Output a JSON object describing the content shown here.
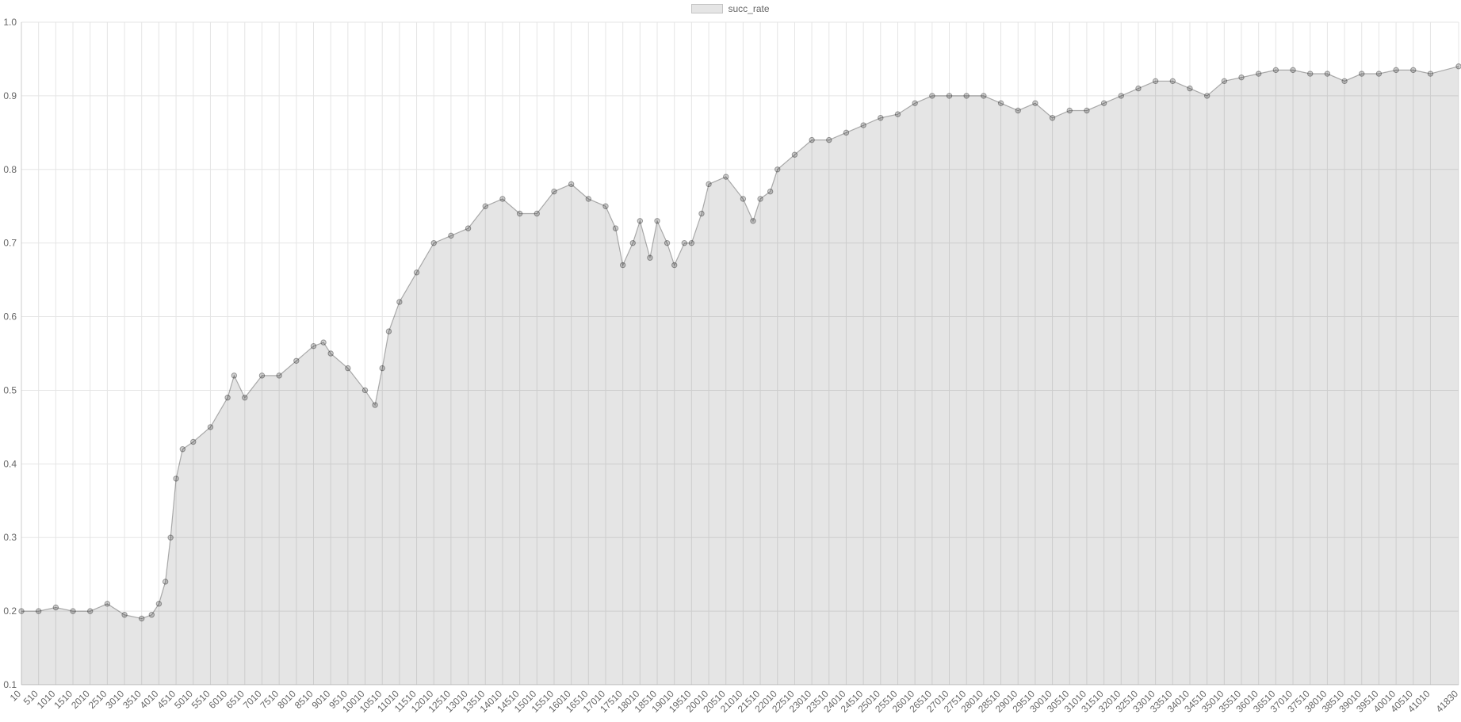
{
  "legend": {
    "label": "succ_rate"
  },
  "colors": {
    "fill": "rgba(0,0,0,0.1)",
    "line": "rgba(0,0,0,0.3)",
    "point_fill": "rgba(0,0,0,0.18)",
    "point_stroke": "rgba(0,0,0,0.35)",
    "grid": "#e5e5e5",
    "tick_text": "#666666"
  },
  "chart_data": {
    "type": "line",
    "fill": true,
    "grid": true,
    "legend_position": "top-center",
    "title": "",
    "xlabel": "",
    "ylabel": "",
    "ylim": [
      0.1,
      1.0
    ],
    "yticks": [
      0.1,
      0.2,
      0.3,
      0.4,
      0.5,
      0.6,
      0.7,
      0.8,
      0.9,
      1.0
    ],
    "xlim": [
      10,
      41830
    ],
    "xticks": [
      10,
      510,
      1010,
      1510,
      2010,
      2510,
      3010,
      3510,
      4010,
      4510,
      5010,
      5510,
      6010,
      6510,
      7010,
      7510,
      8010,
      8510,
      9010,
      9510,
      10010,
      10510,
      11010,
      11510,
      12010,
      12510,
      13010,
      13510,
      14010,
      14510,
      15010,
      15510,
      16010,
      16510,
      17010,
      17510,
      18010,
      18510,
      19010,
      19510,
      20010,
      20510,
      21010,
      21510,
      22010,
      22510,
      23010,
      23510,
      24010,
      24510,
      25010,
      25510,
      26010,
      26510,
      27010,
      27510,
      28010,
      28510,
      29010,
      29510,
      30010,
      30510,
      31010,
      31510,
      32010,
      32510,
      33010,
      33510,
      34010,
      34510,
      35010,
      35510,
      36010,
      36510,
      37010,
      37510,
      38010,
      38510,
      39010,
      39510,
      40010,
      40510,
      41010,
      41830
    ],
    "series": [
      {
        "name": "succ_rate",
        "x": [
          10,
          510,
          1010,
          1510,
          2010,
          2510,
          3010,
          3510,
          3800,
          4010,
          4200,
          4350,
          4510,
          4700,
          5010,
          5510,
          6010,
          6200,
          6510,
          7010,
          7510,
          8010,
          8510,
          8800,
          9010,
          9510,
          10010,
          10300,
          10510,
          10700,
          11010,
          11510,
          12010,
          12510,
          13010,
          13510,
          14010,
          14510,
          15010,
          15510,
          16010,
          16510,
          17010,
          17300,
          17510,
          17800,
          18010,
          18300,
          18510,
          18800,
          19010,
          19300,
          19510,
          19800,
          20010,
          20510,
          21010,
          21300,
          21510,
          21800,
          22010,
          22510,
          23010,
          23510,
          24010,
          24510,
          25010,
          25510,
          26010,
          26510,
          27010,
          27510,
          28010,
          28510,
          29010,
          29510,
          30010,
          30510,
          31010,
          31510,
          32010,
          32510,
          33010,
          33510,
          34010,
          34510,
          35010,
          35510,
          36010,
          36510,
          37010,
          37510,
          38010,
          38510,
          39010,
          39510,
          40010,
          40510,
          41010,
          41830
        ],
        "values": [
          0.2,
          0.2,
          0.205,
          0.2,
          0.2,
          0.21,
          0.195,
          0.19,
          0.195,
          0.21,
          0.24,
          0.3,
          0.38,
          0.42,
          0.43,
          0.45,
          0.49,
          0.52,
          0.49,
          0.52,
          0.52,
          0.54,
          0.56,
          0.565,
          0.55,
          0.53,
          0.5,
          0.48,
          0.53,
          0.58,
          0.62,
          0.66,
          0.7,
          0.71,
          0.72,
          0.75,
          0.76,
          0.74,
          0.74,
          0.77,
          0.78,
          0.76,
          0.75,
          0.72,
          0.67,
          0.7,
          0.73,
          0.68,
          0.73,
          0.7,
          0.67,
          0.7,
          0.7,
          0.74,
          0.78,
          0.79,
          0.76,
          0.73,
          0.76,
          0.77,
          0.8,
          0.82,
          0.84,
          0.84,
          0.85,
          0.86,
          0.87,
          0.875,
          0.89,
          0.9,
          0.9,
          0.9,
          0.9,
          0.89,
          0.88,
          0.89,
          0.87,
          0.88,
          0.88,
          0.89,
          0.9,
          0.91,
          0.92,
          0.92,
          0.91,
          0.9,
          0.92,
          0.925,
          0.93,
          0.935,
          0.935,
          0.93,
          0.93,
          0.92,
          0.93,
          0.93,
          0.935,
          0.935,
          0.93,
          0.94
        ]
      }
    ]
  }
}
